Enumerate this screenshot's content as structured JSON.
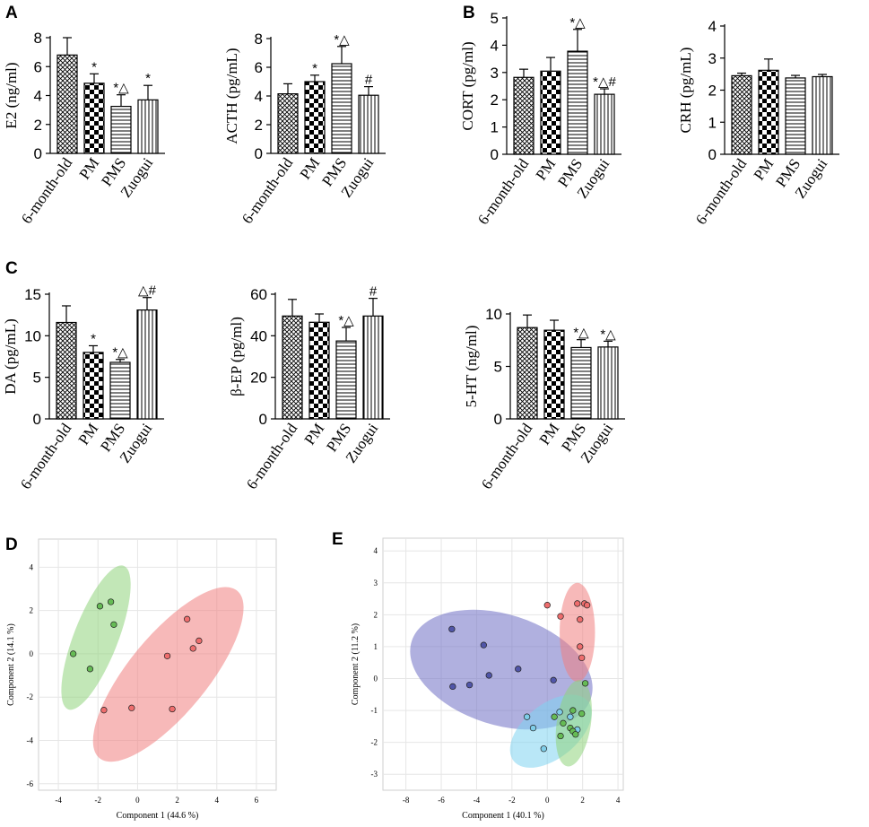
{
  "colors": {
    "axis": "#000000",
    "grid": "#e6e6e6",
    "pca_red": "#f08080",
    "pca_red_point": "#ee6d6d",
    "pca_green": "#90d47c",
    "pca_green_point": "#66bb55",
    "pca_blue": "#6f6fc4",
    "pca_blue_point": "#5055a8",
    "pca_cyan": "#7fd3f0",
    "pca_cyan_point": "#7fcde8"
  },
  "chart_data": [
    {
      "panel_label": "A",
      "type": "bar",
      "ylabel": "E2  (ng/ml)",
      "ylim": [
        0,
        8
      ],
      "yticks": [
        "0",
        "2",
        "4",
        "6",
        "8"
      ],
      "categories": [
        "6-month-old",
        "PM",
        "PMS",
        "Zuogui"
      ],
      "values": [
        6.8,
        4.85,
        3.25,
        3.7
      ],
      "errors": [
        1.2,
        0.65,
        0.8,
        1.0
      ],
      "annotations": [
        "",
        "*",
        "*△",
        "*"
      ]
    },
    {
      "panel_label": "",
      "type": "bar",
      "ylabel": "ACTH (pg/mL)",
      "ylim": [
        0,
        8
      ],
      "yticks": [
        "0",
        "2",
        "4",
        "6",
        "8"
      ],
      "categories": [
        "6-month-old",
        "PM",
        "PMS",
        "Zuogui"
      ],
      "values": [
        4.15,
        5.0,
        6.25,
        4.05
      ],
      "errors": [
        0.7,
        0.45,
        1.2,
        0.6
      ],
      "annotations": [
        "",
        "*",
        "*△",
        "#"
      ]
    },
    {
      "panel_label": "B",
      "type": "bar",
      "ylabel": "CORT (pg/ml)",
      "ylim": [
        0,
        5
      ],
      "yticks": [
        "0",
        "1",
        "2",
        "3",
        "4",
        "5"
      ],
      "categories": [
        "6-month-old",
        "PM",
        "PMS",
        "Zuogui"
      ],
      "values": [
        2.82,
        3.05,
        3.78,
        2.2
      ],
      "errors": [
        0.3,
        0.5,
        0.8,
        0.2
      ],
      "annotations": [
        "",
        "",
        "*△",
        "*△#"
      ]
    },
    {
      "panel_label": "",
      "type": "bar",
      "ylabel": "CRH (pg/mL)",
      "ylim": [
        0,
        4
      ],
      "yticks": [
        "0",
        "1",
        "2",
        "3",
        "4"
      ],
      "categories": [
        "6-month-old",
        "PM",
        "PMS",
        "Zuogui"
      ],
      "values": [
        2.45,
        2.62,
        2.38,
        2.42
      ],
      "errors": [
        0.08,
        0.35,
        0.08,
        0.07
      ],
      "annotations": [
        "",
        "",
        "",
        ""
      ]
    },
    {
      "panel_label": "C",
      "type": "bar",
      "ylabel": "DA (pg/mL)",
      "ylim": [
        0,
        15
      ],
      "yticks": [
        "0",
        "5",
        "10",
        "15"
      ],
      "categories": [
        "6-month-old",
        "PM",
        "PMS",
        "Zuogui"
      ],
      "values": [
        11.6,
        8.0,
        6.8,
        13.1
      ],
      "errors": [
        2.0,
        0.8,
        0.35,
        1.5
      ],
      "annotations": [
        "",
        "*",
        "*△",
        "△#"
      ]
    },
    {
      "panel_label": "",
      "type": "bar",
      "ylabel": "β-EP (pg/ml)",
      "ylim": [
        0,
        60
      ],
      "yticks": [
        "0",
        "20",
        "40",
        "60"
      ],
      "categories": [
        "6-month-old",
        "PM",
        "PMS",
        "Zuogui"
      ],
      "values": [
        49.5,
        46.5,
        37.5,
        49.5
      ],
      "errors": [
        8.0,
        4.0,
        6.5,
        8.5
      ],
      "annotations": [
        "",
        "",
        "*△",
        "#"
      ]
    },
    {
      "panel_label": "",
      "type": "bar",
      "ylabel": "5-HT (ng/ml)",
      "ylim": [
        0,
        10
      ],
      "yticks": [
        "0",
        "5",
        "10"
      ],
      "categories": [
        "6-month-old",
        "PM",
        "PMS",
        "Zuogui"
      ],
      "values": [
        8.7,
        8.45,
        6.8,
        6.85
      ],
      "errors": [
        1.2,
        0.95,
        0.75,
        0.55
      ],
      "annotations": [
        "",
        "",
        "*△",
        "*△"
      ]
    },
    {
      "panel_label": "D",
      "type": "scatter",
      "xlabel": "Component 1 (44.6 %)",
      "ylabel": "Component 2 (14.1 %)",
      "xlim": [
        -5,
        7
      ],
      "ylim": [
        -6.3,
        5.3
      ],
      "xticks": [
        -4,
        -2,
        0,
        2,
        4,
        6
      ],
      "yticks": [
        -6,
        -4,
        -2,
        0,
        2,
        4
      ],
      "series": [
        {
          "name": "green",
          "color": "#66bb55",
          "ellipse": {
            "cx": -2.1,
            "cy": 0.75,
            "rx": 3.6,
            "ry": 1.1,
            "angle_deg": 67
          },
          "points": [
            [
              -1.9,
              2.2
            ],
            [
              -1.35,
              2.4
            ],
            [
              -1.2,
              1.35
            ],
            [
              -3.25,
              0.0
            ],
            [
              -2.4,
              -0.7
            ]
          ]
        },
        {
          "name": "red",
          "color": "#ee6d6d",
          "ellipse": {
            "cx": 1.55,
            "cy": -0.95,
            "rx": 5.2,
            "ry": 1.9,
            "angle_deg": 48
          },
          "points": [
            [
              2.5,
              1.6
            ],
            [
              3.1,
              0.6
            ],
            [
              2.8,
              0.25
            ],
            [
              1.5,
              -0.1
            ],
            [
              -1.7,
              -2.6
            ],
            [
              -0.3,
              -2.5
            ],
            [
              1.75,
              -2.55
            ]
          ]
        }
      ]
    },
    {
      "panel_label": "E",
      "type": "scatter",
      "xlabel": "Component 1 (40.1 %)",
      "ylabel": "Component 2 (11.2 %)",
      "xlim": [
        -9.3,
        4.3
      ],
      "ylim": [
        -3.5,
        4.4
      ],
      "xticks": [
        -8,
        -6,
        -4,
        -2,
        0,
        2,
        4
      ],
      "yticks": [
        -3,
        -2,
        -1,
        0,
        1,
        2,
        3,
        4
      ],
      "series": [
        {
          "name": "blue",
          "color": "#5055a8",
          "ellipse": {
            "cx": -2.6,
            "cy": 0.28,
            "rx": 5.15,
            "ry": 1.75,
            "angle_deg": -10
          },
          "points": [
            [
              -5.4,
              1.55
            ],
            [
              -3.6,
              1.05
            ],
            [
              -3.3,
              0.1
            ],
            [
              -1.65,
              0.3
            ],
            [
              -4.4,
              -0.2
            ],
            [
              -5.35,
              -0.25
            ],
            [
              0.35,
              -0.05
            ]
          ]
        },
        {
          "name": "red",
          "color": "#ee6d6d",
          "ellipse": {
            "cx": 1.7,
            "cy": 1.45,
            "rx": 1.55,
            "ry": 1.0,
            "angle_deg": 90
          },
          "points": [
            [
              0.0,
              2.3
            ],
            [
              1.7,
              2.35
            ],
            [
              2.1,
              2.35
            ],
            [
              2.25,
              2.3
            ],
            [
              0.75,
              1.95
            ],
            [
              1.85,
              1.85
            ],
            [
              1.85,
              1.0
            ],
            [
              1.95,
              0.65
            ]
          ]
        },
        {
          "name": "cyan",
          "color": "#7fcde8",
          "ellipse": {
            "cx": 0.2,
            "cy": -1.65,
            "rx": 2.3,
            "ry": 0.9,
            "angle_deg": 24
          },
          "points": [
            [
              -1.15,
              -1.2
            ],
            [
              -0.8,
              -1.55
            ],
            [
              -0.2,
              -2.2
            ],
            [
              0.7,
              -1.05
            ],
            [
              1.3,
              -1.2
            ],
            [
              1.7,
              -1.6
            ]
          ]
        },
        {
          "name": "green",
          "color": "#66bb55",
          "ellipse": {
            "cx": 1.5,
            "cy": -1.4,
            "rx": 1.4,
            "ry": 0.9,
            "angle_deg": 75
          },
          "points": [
            [
              2.15,
              -0.15
            ],
            [
              0.4,
              -1.2
            ],
            [
              0.9,
              -1.4
            ],
            [
              1.45,
              -1.0
            ],
            [
              1.95,
              -1.1
            ],
            [
              1.3,
              -1.55
            ],
            [
              0.75,
              -1.8
            ],
            [
              1.45,
              -1.65
            ],
            [
              1.6,
              -1.75
            ]
          ]
        }
      ]
    }
  ]
}
